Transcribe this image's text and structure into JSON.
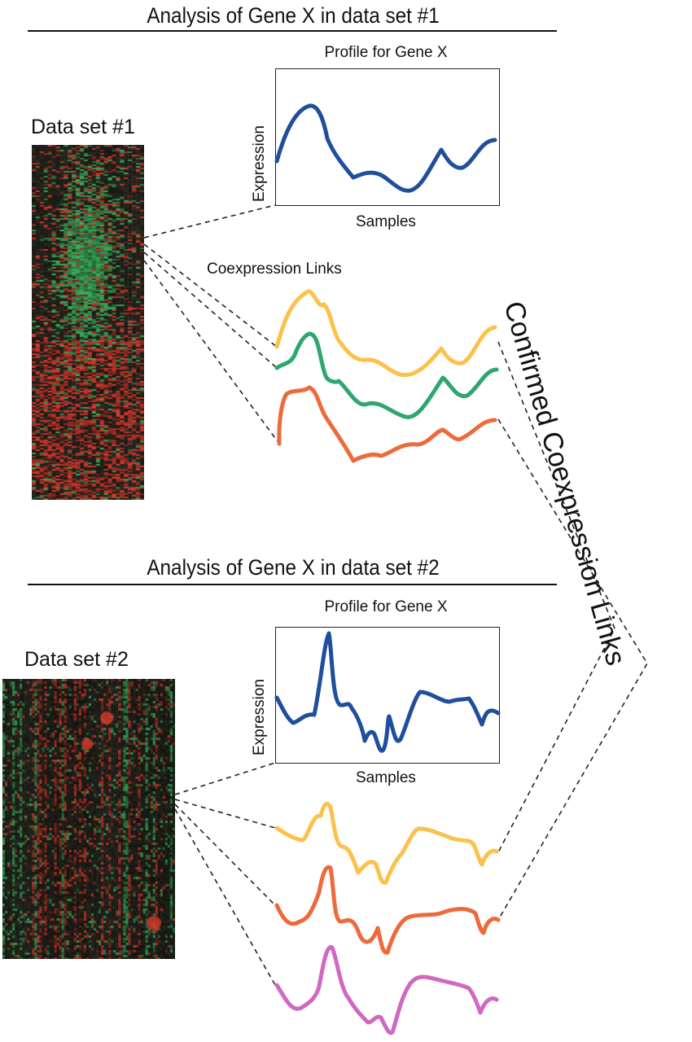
{
  "section1": {
    "title": "Analysis of Gene X in data set #1",
    "dataset_label": "Data set #1",
    "profile_title": "Profile for Gene X",
    "y_axis": "Expression",
    "x_axis": "Samples",
    "coexpression_label": "Coexpression Links"
  },
  "section2": {
    "title": "Analysis of Gene X in data set #2",
    "dataset_label": "Data set #2",
    "profile_title": "Profile for Gene X",
    "y_axis": "Expression",
    "x_axis": "Samples"
  },
  "confirmed_label": "Confirmed Coexpression Links",
  "colors": {
    "profile": "#1f4e9c",
    "yellow": "#fbc14b",
    "green": "#2ea66d",
    "orange": "#ee6a3a",
    "magenta": "#d068c0",
    "heat_green": "#3cae5c",
    "heat_red": "#d83a2e",
    "heat_dark": "#2a2a22"
  }
}
